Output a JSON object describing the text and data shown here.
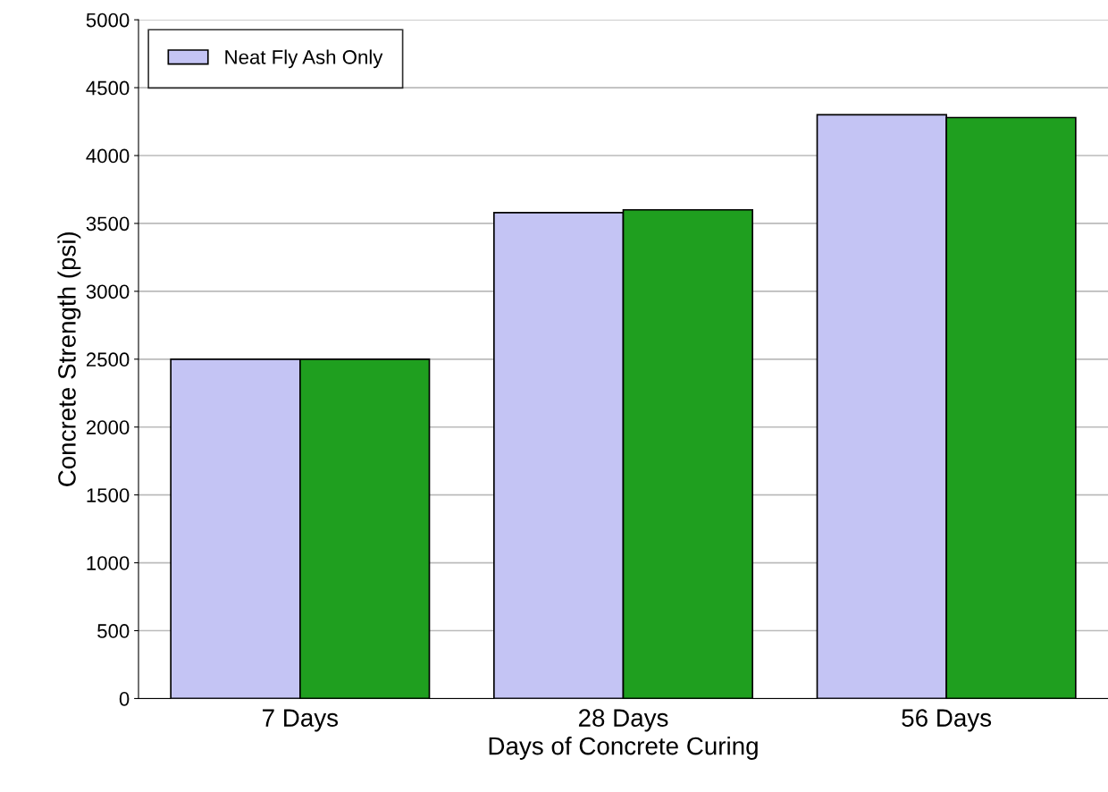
{
  "chart_data": {
    "type": "bar",
    "xlabel": "Days of Concrete Curing",
    "ylabel": "Concrete Strength (psi)",
    "categories": [
      "7 Days",
      "28 Days",
      "56 Days"
    ],
    "series": [
      {
        "name": "Neat Fly Ash Only",
        "color": "#c4c4f4",
        "values": [
          2500,
          3580,
          4300
        ]
      },
      {
        "color": "#1f9f1f",
        "values": [
          2500,
          3600,
          4280
        ]
      }
    ],
    "ylim": [
      0,
      5000
    ],
    "yticks": [
      0,
      500,
      1000,
      1500,
      2000,
      2500,
      3000,
      3500,
      4000,
      4500,
      5000
    ],
    "grid": "y",
    "legend": "top left"
  }
}
